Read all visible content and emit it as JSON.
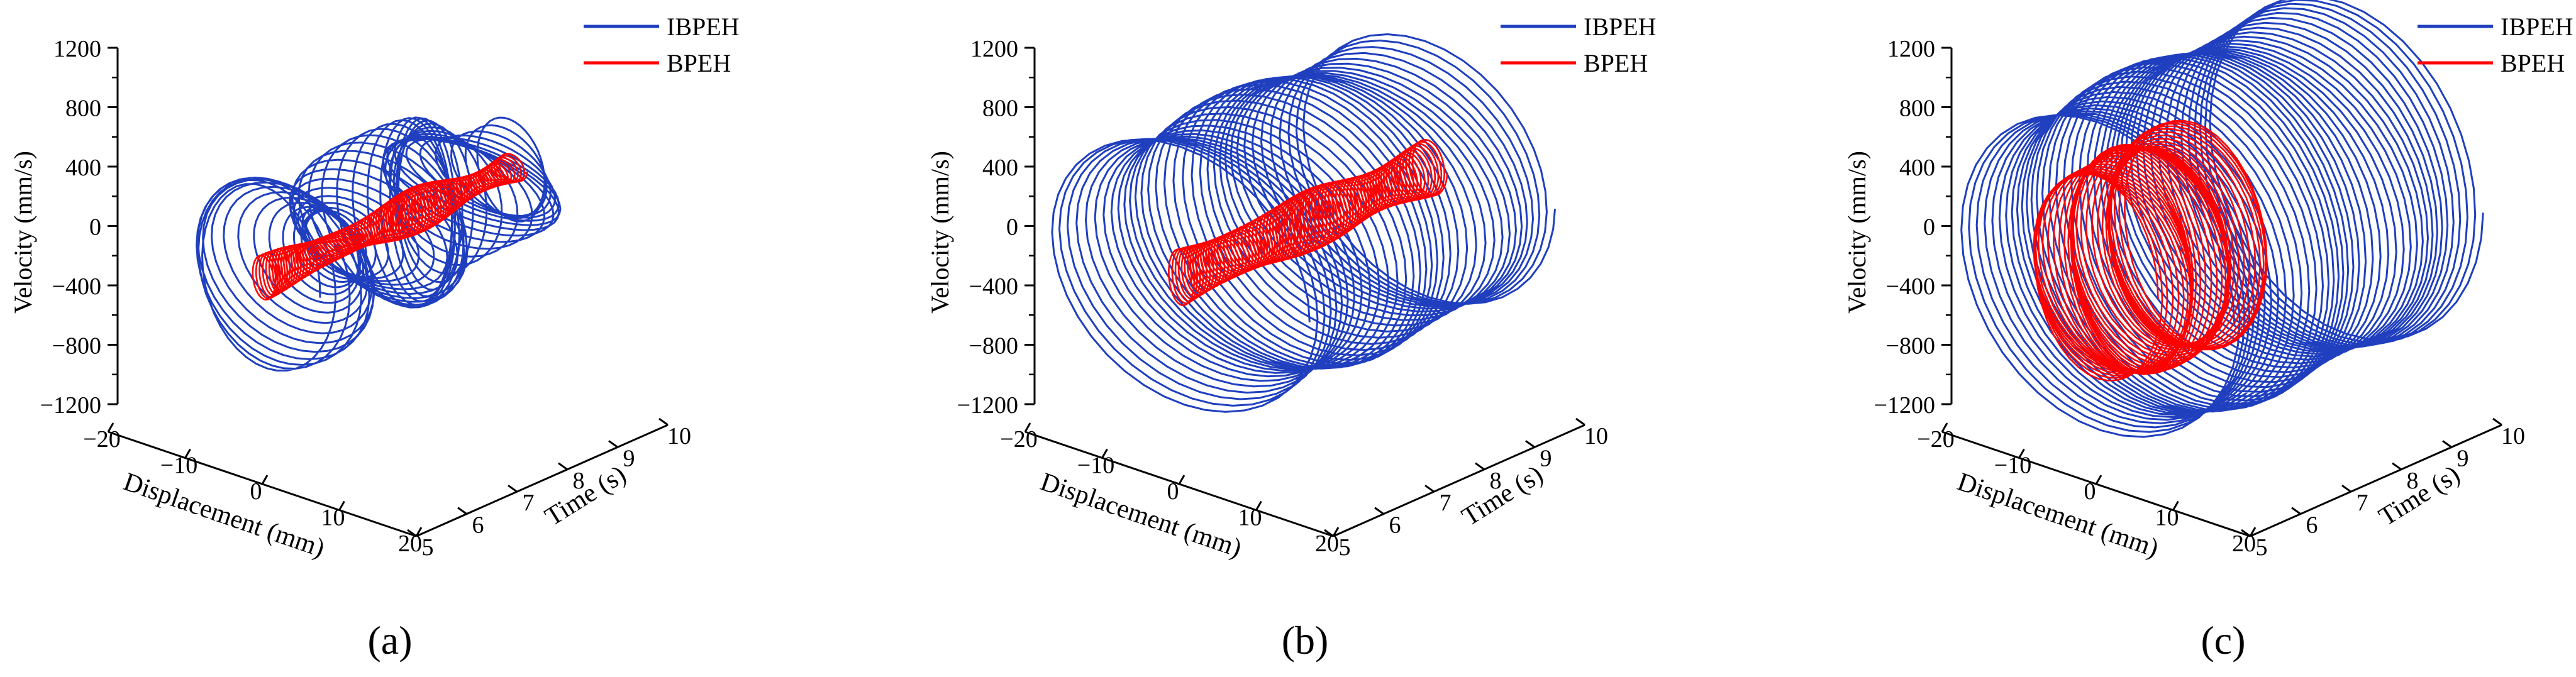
{
  "figure": {
    "panel_captions": [
      "(a)",
      "(b)",
      "(c)"
    ]
  },
  "chart_data": [
    {
      "type": "line3d",
      "panel": "a",
      "title": "",
      "xlabel": "Displacement (mm)",
      "ylabel": "Time (s)",
      "zlabel": "Velocity (mm/s)",
      "xlim": [
        -20,
        20
      ],
      "xticks": [
        -20,
        -10,
        0,
        10,
        20
      ],
      "ylim": [
        5,
        10
      ],
      "yticks": [
        5,
        6,
        7,
        8,
        9,
        10
      ],
      "zlim": [
        -1200,
        1200
      ],
      "zticks": [
        -1200,
        -800,
        -400,
        0,
        400,
        800,
        1200
      ],
      "legend_position": "top-right",
      "series": [
        {
          "name": "IBPEH",
          "color": "#1f3fbf",
          "t_range": [
            5,
            10
          ],
          "orbit_cycles": 45,
          "disp_amplitude_range": [
            4,
            11
          ],
          "vel_amplitude_range": [
            220,
            620
          ]
        },
        {
          "name": "BPEH",
          "color": "#ff0000",
          "t_range": [
            5,
            10
          ],
          "orbit_cycles": 90,
          "disp_amplitude_range": [
            1,
            1.8
          ],
          "vel_amplitude_range": [
            60,
            150
          ]
        }
      ]
    },
    {
      "type": "line3d",
      "panel": "b",
      "title": "",
      "xlabel": "Displacement (mm)",
      "ylabel": "Time (s)",
      "zlabel": "Velocity (mm/s)",
      "xlim": [
        -20,
        20
      ],
      "xticks": [
        -20,
        -10,
        0,
        10,
        20
      ],
      "ylim": [
        5,
        10
      ],
      "yticks": [
        5,
        6,
        7,
        8,
        9,
        10
      ],
      "zlim": [
        -1200,
        1200
      ],
      "zticks": [
        -1200,
        -800,
        -400,
        0,
        400,
        800,
        1200
      ],
      "legend_position": "top-right",
      "series": [
        {
          "name": "IBPEH",
          "color": "#1f3fbf",
          "t_range": [
            5,
            10
          ],
          "orbit_cycles": 34,
          "disp_amplitude_range": [
            16,
            17
          ],
          "vel_amplitude_range": [
            760,
            900
          ]
        },
        {
          "name": "BPEH",
          "color": "#ff0000",
          "t_range": [
            5,
            10
          ],
          "orbit_cycles": 80,
          "disp_amplitude_range": [
            1.5,
            2.2
          ],
          "vel_amplitude_range": [
            130,
            200
          ]
        }
      ]
    },
    {
      "type": "line3d",
      "panel": "c",
      "title": "",
      "xlabel": "Displacement (mm)",
      "ylabel": "Time (s)",
      "zlabel": "Velocity (mm/s)",
      "xlim": [
        -20,
        20
      ],
      "xticks": [
        -20,
        -10,
        0,
        10,
        20
      ],
      "ylim": [
        5,
        10
      ],
      "yticks": [
        5,
        6,
        7,
        8,
        9,
        10
      ],
      "zlim": [
        -1200,
        1200
      ],
      "zticks": [
        -1200,
        -800,
        -400,
        0,
        400,
        800,
        1200
      ],
      "legend_position": "top-right",
      "series": [
        {
          "name": "IBPEH",
          "color": "#1f3fbf",
          "t_range": [
            5,
            10
          ],
          "orbit_cycles": 40,
          "disp_amplitude_range": [
            17,
            18
          ],
          "vel_amplitude_range": [
            1000,
            1120
          ]
        },
        {
          "name": "BPEH",
          "color": "#ff0000",
          "t_range": [
            5,
            7
          ],
          "orbit_cycles": 40,
          "disp_amplitude_range": [
            8,
            10
          ],
          "vel_amplitude_range": [
            650,
            750
          ]
        }
      ]
    }
  ]
}
